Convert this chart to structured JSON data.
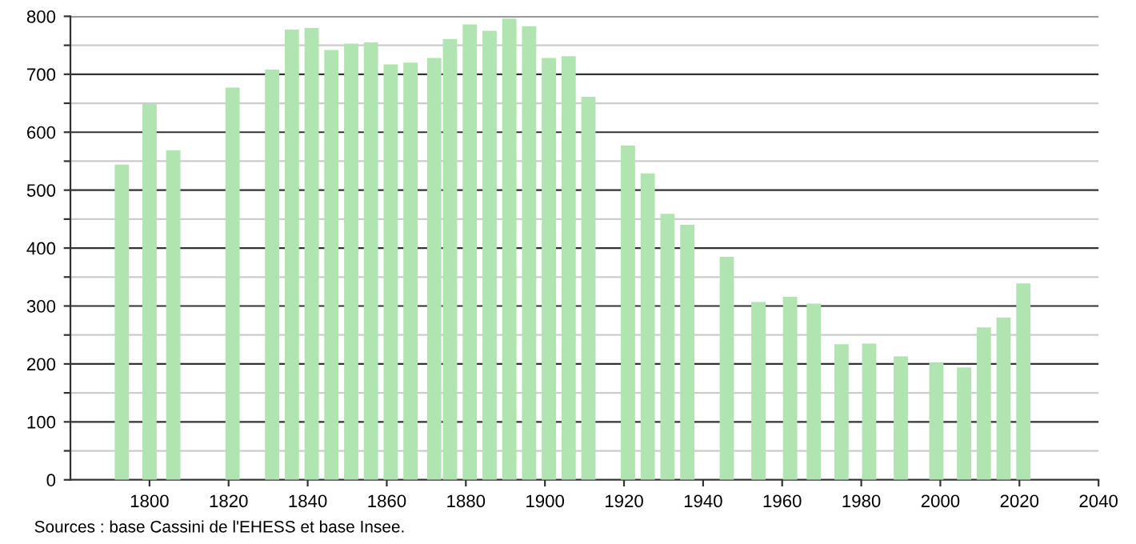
{
  "chart_data": {
    "type": "bar",
    "x": [
      1793,
      1800,
      1806,
      1821,
      1831,
      1836,
      1841,
      1846,
      1851,
      1856,
      1861,
      1866,
      1872,
      1876,
      1881,
      1886,
      1891,
      1896,
      1901,
      1906,
      1911,
      1921,
      1926,
      1931,
      1936,
      1946,
      1954,
      1962,
      1968,
      1975,
      1982,
      1990,
      1999,
      2006,
      2011,
      2016,
      2021
    ],
    "values": [
      544,
      649,
      569,
      677,
      708,
      777,
      780,
      742,
      753,
      755,
      717,
      720,
      728,
      761,
      786,
      775,
      796,
      783,
      728,
      731,
      661,
      577,
      529,
      459,
      440,
      385,
      307,
      316,
      304,
      234,
      235,
      213,
      202,
      194,
      263,
      280,
      339
    ],
    "color": "#b0e4b0",
    "xlim": [
      1780,
      2040
    ],
    "xticks": [
      1800,
      1820,
      1840,
      1860,
      1880,
      1900,
      1920,
      1940,
      1960,
      1980,
      2000,
      2020,
      2040
    ],
    "ylim": [
      0,
      800
    ],
    "yticks": [
      0,
      {
        "value": 50,
        "label": null
      },
      100,
      {
        "value": 150,
        "label": null
      },
      200,
      {
        "value": 250,
        "label": null
      },
      300,
      {
        "value": 350,
        "label": null
      },
      400,
      {
        "value": 450,
        "label": null
      },
      500,
      {
        "value": 550,
        "label": null
      },
      600,
      {
        "value": 650,
        "label": null
      },
      700,
      {
        "value": 750,
        "label": null
      },
      800
    ],
    "grid": "y",
    "legend": false,
    "annotations": [
      "Sources : base Cassini de l'EHESS et base Insee."
    ]
  }
}
